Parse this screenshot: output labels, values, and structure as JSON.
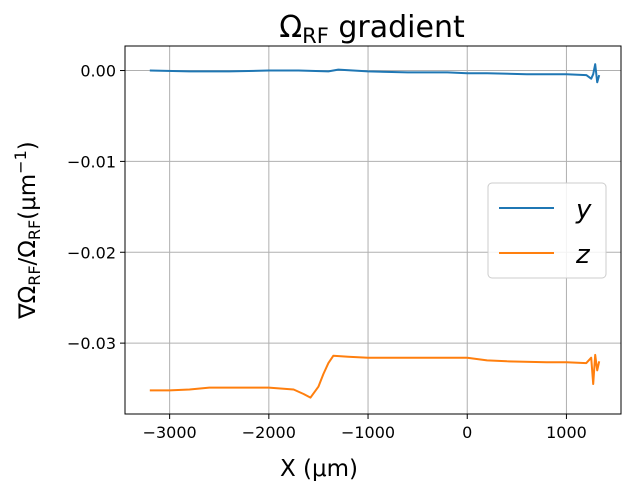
{
  "chart_data": {
    "type": "line",
    "title_main": "Ω",
    "title_sub": "RF",
    "title_rest": " gradient",
    "xlabel": "X (μm)",
    "ylabel_parts": {
      "a": "∇Ω",
      "a_sub": "RF",
      "b": "/Ω",
      "b_sub": "RF",
      "c": "(μm",
      "c_sup": "−1",
      "d": ")"
    },
    "xlim": [
      -3450,
      1550
    ],
    "ylim": [
      -0.0378,
      0.0027
    ],
    "x_ticks": [
      -3000,
      -2000,
      -1000,
      0,
      1000
    ],
    "x_tick_labels": [
      "−3000",
      "−2000",
      "−1000",
      "0",
      "1000"
    ],
    "y_ticks": [
      0.0,
      -0.01,
      -0.02,
      -0.03
    ],
    "y_tick_labels": [
      "0.00",
      "−0.01",
      "−0.02",
      "−0.03"
    ],
    "grid": true,
    "legend_position": "center-right",
    "series": [
      {
        "name": "y",
        "color": "#1f77b4",
        "x": [
          -3200,
          -2800,
          -2400,
          -2000,
          -1700,
          -1400,
          -1300,
          -1000,
          -600,
          -200,
          0,
          200,
          600,
          1000,
          1200,
          1250,
          1270,
          1290,
          1310,
          1330
        ],
        "y": [
          0.0,
          -0.0001,
          -0.0001,
          0.0,
          0.0,
          -0.0001,
          0.0001,
          -0.0001,
          -0.0002,
          -0.0002,
          -0.0003,
          -0.0003,
          -0.0004,
          -0.0004,
          -0.0005,
          -0.0009,
          -0.0004,
          0.0007,
          -0.0013,
          -0.0005
        ]
      },
      {
        "name": "z",
        "color": "#ff7f0e",
        "x": [
          -3200,
          -3000,
          -2800,
          -2600,
          -2400,
          -2000,
          -1750,
          -1650,
          -1580,
          -1500,
          -1450,
          -1400,
          -1350,
          -1200,
          -1000,
          -600,
          -200,
          0,
          200,
          400,
          800,
          1000,
          1200,
          1250,
          1270,
          1290,
          1310,
          1330
        ],
        "y": [
          -0.0352,
          -0.0352,
          -0.0351,
          -0.0349,
          -0.0349,
          -0.0349,
          -0.0351,
          -0.0356,
          -0.036,
          -0.0348,
          -0.0334,
          -0.0322,
          -0.0314,
          -0.0315,
          -0.0316,
          -0.0316,
          -0.0316,
          -0.0316,
          -0.0319,
          -0.032,
          -0.0321,
          -0.0321,
          -0.0322,
          -0.0316,
          -0.0345,
          -0.0313,
          -0.033,
          -0.032
        ]
      }
    ]
  }
}
